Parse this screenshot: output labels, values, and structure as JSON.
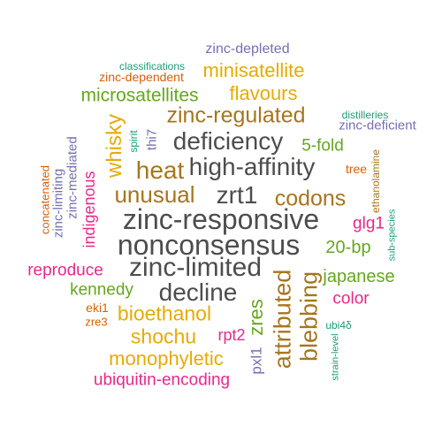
{
  "colors": {
    "purple": "#7570b3",
    "orange": "#d95f02",
    "teal": "#1b9e77",
    "gold": "#e6ab02",
    "green": "#66a61e",
    "brown": "#a6761d",
    "gray": "#4d4d4d",
    "magenta": "#e7298a"
  },
  "words": {
    "zinc_depleted": "zinc-depleted",
    "classifications": "classifications",
    "minisatellite": "minisatellite",
    "zinc_dependent": "zinc-dependent",
    "microsatellites": "microsatellites",
    "flavours": "flavours",
    "distilleries": "distilleries",
    "zinc_deficient": "zinc-deficient",
    "zinc_regulated": "zinc-regulated",
    "whisky": "whisky",
    "spirit": "spirit",
    "thi7": "thi7",
    "deficiency": "deficiency",
    "five_fold": "5-fold",
    "zinc_mediated": "zinc-mediated",
    "heat": "heat",
    "high_affinity": "high-affinity",
    "tree": "tree",
    "concatenated": "concatenated",
    "ethanolamine": "ethanolamine",
    "unusual": "unusual",
    "zrt1": "zrt1",
    "codons": "codons",
    "zinc_limiting": "zinc-limiting",
    "indigenous": "indigenous",
    "zinc_responsive": "zinc-responsive",
    "glg1": "glg1",
    "sub_species": "sub-species",
    "nonconsensus": "nonconsensus",
    "twenty_bp": "20-bp",
    "reproduce": "reproduce",
    "zinc_limited": "zinc-limited",
    "japanese": "japanese",
    "kennedy": "kennedy",
    "decline": "decline",
    "zres": "zres",
    "attributed": "attributed",
    "blebbing": "blebbing",
    "color": "color",
    "eki1": "eki1",
    "bioethanol": "bioethanol",
    "zre3": "zre3",
    "ubi4d": "ubi4δ",
    "shochu": "shochu",
    "rpt2": "rpt2",
    "strain_level": "strain-level",
    "pxl1": "pxl1",
    "monophyletic": "monophyletic",
    "ubiquitin_encoding": "ubiquitin-encoding"
  }
}
